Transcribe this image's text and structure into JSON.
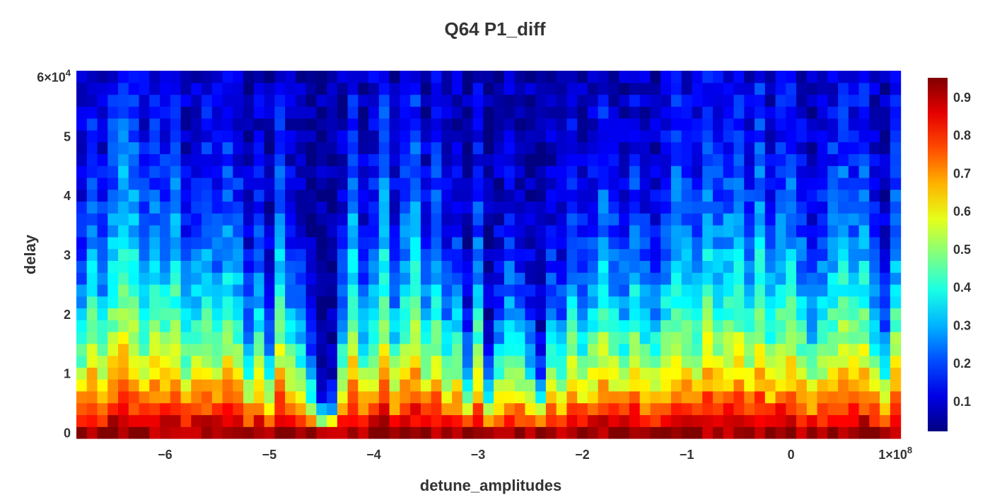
{
  "chart_data": {
    "type": "heatmap",
    "title": "Q64 P1_diff",
    "xlabel": "detune_amplitudes",
    "ylabel": "delay",
    "x_range": [
      -68500000.0,
      10800000.0
    ],
    "y_range": [
      -1000,
      61000
    ],
    "x_ticks": [
      {
        "value": -60000000.0,
        "label": "−6"
      },
      {
        "value": -50000000.0,
        "label": "−5"
      },
      {
        "value": -40000000.0,
        "label": "−4"
      },
      {
        "value": -30000000.0,
        "label": "−3"
      },
      {
        "value": -20000000.0,
        "label": "−2"
      },
      {
        "value": -10000000.0,
        "label": "−1"
      },
      {
        "value": 0,
        "label": "0"
      },
      {
        "value": 10000000.0,
        "label": "1×10",
        "sup": "8"
      }
    ],
    "y_ticks": [
      {
        "value": 0,
        "label": "0"
      },
      {
        "value": 10000,
        "label": "1"
      },
      {
        "value": 20000,
        "label": "2"
      },
      {
        "value": 30000,
        "label": "3"
      },
      {
        "value": 40000,
        "label": "4"
      },
      {
        "value": 50000,
        "label": "5"
      },
      {
        "value": 60000,
        "label": "6×10",
        "sup": "4"
      }
    ],
    "colorscale": "jet",
    "colorbar": {
      "zmin": 0.02,
      "zmax": 0.95,
      "ticks": [
        {
          "value": 0.1,
          "label": "0.1"
        },
        {
          "value": 0.2,
          "label": "0.2"
        },
        {
          "value": 0.3,
          "label": "0.3"
        },
        {
          "value": 0.4,
          "label": "0.4"
        },
        {
          "value": 0.5,
          "label": "0.5"
        },
        {
          "value": 0.6,
          "label": "0.6"
        },
        {
          "value": 0.7,
          "label": "0.7"
        },
        {
          "value": 0.8,
          "label": "0.8"
        },
        {
          "value": 0.9,
          "label": "0.9"
        }
      ]
    },
    "grid": {
      "x_start": -68000000.0,
      "x_step": 1000000.0,
      "nx": 79,
      "y_start": 0,
      "y_step": 2000,
      "ny": 31,
      "decay_constants": [
        16000.0,
        24000.0,
        18000.0,
        26000.0,
        32000.0,
        28000.0,
        20000.0,
        24000.0,
        22000.0,
        26000.0,
        16000.0,
        20000.0,
        23000.0,
        19000.0,
        24000.0,
        20000.0,
        12000.0,
        18000.0,
        10000.0,
        24000.0,
        16000.0,
        13000.0,
        7000.0,
        3000.0,
        3500.0,
        15000.0,
        26000.0,
        14000.0,
        19000.0,
        28000.0,
        15000.0,
        22000.0,
        28000.0,
        16000.0,
        22000.0,
        14000.0,
        16000.0,
        9000.0,
        20000.0,
        6000.0,
        12000.0,
        16000.0,
        13000.0,
        10000.0,
        6000.0,
        14000.0,
        12000.0,
        20000.0,
        15000.0,
        18000.0,
        24000.0,
        18000.0,
        16000.0,
        22000.0,
        16000.0,
        15000.0,
        20000.0,
        26000.0,
        22000.0,
        19000.0,
        28000.0,
        22000.0,
        24000.0,
        26000.0,
        20000.0,
        28000.0,
        18000.0,
        23000.0,
        25000.0,
        19000.0,
        14000.0,
        18000.0,
        23000.0,
        26000.0,
        22000.0,
        25000.0,
        16000.0,
        11000.0,
        22000.0
      ]
    }
  }
}
